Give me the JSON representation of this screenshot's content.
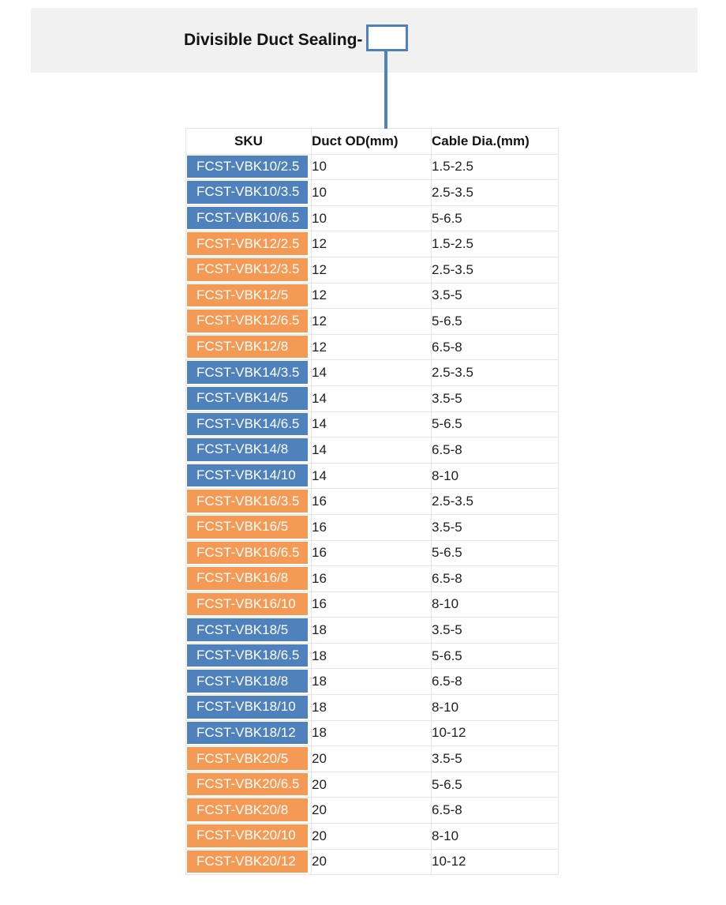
{
  "banner": {
    "title": "Divisible Duct Sealing-",
    "bg_color": "#f1f1f2"
  },
  "callout": {
    "box_border_color": "#4f81bd",
    "line_color": "#4f81bd"
  },
  "table": {
    "headers": [
      "SKU",
      "Duct OD(mm)",
      "Cable Dia.(mm)"
    ],
    "colors": {
      "blue": "#4f81bd",
      "orange": "#f49a55"
    },
    "rows": [
      {
        "sku": "FCST-VBK10/2.5",
        "duct_od": "10",
        "cable_dia": "1.5-2.5",
        "color": "blue"
      },
      {
        "sku": "FCST-VBK10/3.5",
        "duct_od": "10",
        "cable_dia": "2.5-3.5",
        "color": "blue"
      },
      {
        "sku": "FCST-VBK10/6.5",
        "duct_od": "10",
        "cable_dia": "5-6.5",
        "color": "blue"
      },
      {
        "sku": "FCST-VBK12/2.5",
        "duct_od": "12",
        "cable_dia": "1.5-2.5",
        "color": "orange"
      },
      {
        "sku": "FCST-VBK12/3.5",
        "duct_od": "12",
        "cable_dia": "2.5-3.5",
        "color": "orange"
      },
      {
        "sku": "FCST-VBK12/5",
        "duct_od": "12",
        "cable_dia": "3.5-5",
        "color": "orange"
      },
      {
        "sku": "FCST-VBK12/6.5",
        "duct_od": "12",
        "cable_dia": "5-6.5",
        "color": "orange"
      },
      {
        "sku": "FCST-VBK12/8",
        "duct_od": "12",
        "cable_dia": "6.5-8",
        "color": "orange"
      },
      {
        "sku": "FCST-VBK14/3.5",
        "duct_od": "14",
        "cable_dia": "2.5-3.5",
        "color": "blue"
      },
      {
        "sku": "FCST-VBK14/5",
        "duct_od": "14",
        "cable_dia": "3.5-5",
        "color": "blue"
      },
      {
        "sku": "FCST-VBK14/6.5",
        "duct_od": "14",
        "cable_dia": "5-6.5",
        "color": "blue"
      },
      {
        "sku": "FCST-VBK14/8",
        "duct_od": "14",
        "cable_dia": "6.5-8",
        "color": "blue"
      },
      {
        "sku": "FCST-VBK14/10",
        "duct_od": "14",
        "cable_dia": "8-10",
        "color": "blue"
      },
      {
        "sku": "FCST-VBK16/3.5",
        "duct_od": "16",
        "cable_dia": "2.5-3.5",
        "color": "orange"
      },
      {
        "sku": "FCST-VBK16/5",
        "duct_od": "16",
        "cable_dia": "3.5-5",
        "color": "orange"
      },
      {
        "sku": "FCST-VBK16/6.5",
        "duct_od": "16",
        "cable_dia": "5-6.5",
        "color": "orange"
      },
      {
        "sku": "FCST-VBK16/8",
        "duct_od": "16",
        "cable_dia": "6.5-8",
        "color": "orange"
      },
      {
        "sku": "FCST-VBK16/10",
        "duct_od": "16",
        "cable_dia": "8-10",
        "color": "orange"
      },
      {
        "sku": "FCST-VBK18/5",
        "duct_od": "18",
        "cable_dia": "3.5-5",
        "color": "blue"
      },
      {
        "sku": "FCST-VBK18/6.5",
        "duct_od": "18",
        "cable_dia": "5-6.5",
        "color": "blue"
      },
      {
        "sku": "FCST-VBK18/8",
        "duct_od": "18",
        "cable_dia": "6.5-8",
        "color": "blue"
      },
      {
        "sku": "FCST-VBK18/10",
        "duct_od": "18",
        "cable_dia": "8-10",
        "color": "blue"
      },
      {
        "sku": "FCST-VBK18/12",
        "duct_od": "18",
        "cable_dia": "10-12",
        "color": "blue"
      },
      {
        "sku": "FCST-VBK20/5",
        "duct_od": "20",
        "cable_dia": "3.5-5",
        "color": "orange"
      },
      {
        "sku": "FCST-VBK20/6.5",
        "duct_od": "20",
        "cable_dia": "5-6.5",
        "color": "orange"
      },
      {
        "sku": "FCST-VBK20/8",
        "duct_od": "20",
        "cable_dia": "6.5-8",
        "color": "orange"
      },
      {
        "sku": "FCST-VBK20/10",
        "duct_od": "20",
        "cable_dia": "8-10",
        "color": "orange"
      },
      {
        "sku": "FCST-VBK20/12",
        "duct_od": "20",
        "cable_dia": "10-12",
        "color": "orange"
      }
    ]
  }
}
